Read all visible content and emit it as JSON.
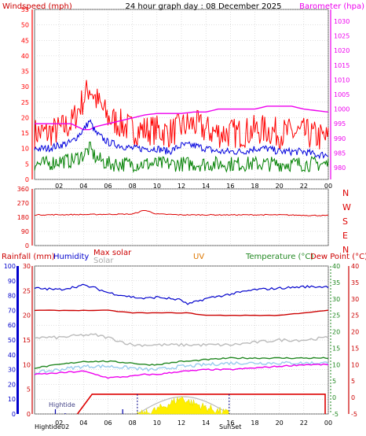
{
  "colors": {
    "wind": "#ff0000",
    "gust": "#ff0000",
    "wind_avg": "#0000dd",
    "wind_low": "#008000",
    "barometer": "#ee00ee",
    "direction": "#dd0000",
    "humidity": "#0000cc",
    "rainfall": "#0000cc",
    "max_solar": "#bbbbbb",
    "solar": "#bbbbbb",
    "uv": "#dd7700",
    "temperature": "#228822",
    "dew_point": "#cc0000",
    "sun": "#ffee00",
    "grid": "#c0c0c0"
  },
  "header": {
    "left_title": "Windspeed (mph)",
    "center_title": "24 hour graph day : 08 December 2025",
    "right_title": "Barometer (hpa)"
  },
  "chart_data": [
    {
      "type": "line",
      "title": "24 hour graph day : 08 December 2025",
      "x_ticks": [
        "02",
        "04",
        "06",
        "08",
        "10",
        "12",
        "14",
        "16",
        "18",
        "20",
        "22",
        "00"
      ],
      "ylabel": "Windspeed (mph)",
      "ylim": [
        0,
        55
      ],
      "y_ticks": [
        "0",
        "5",
        "10",
        "15",
        "20",
        "25",
        "30",
        "35",
        "40",
        "45",
        "50",
        "55"
      ],
      "y2label": "Barometer (hpa)",
      "y2lim": [
        976,
        1034
      ],
      "y2_ticks": [
        "980",
        "985",
        "990",
        "995",
        "1000",
        "1005",
        "1010",
        "1015",
        "1020",
        "1025",
        "1030"
      ],
      "hours": [
        0,
        1,
        2,
        3,
        4,
        4.5,
        5,
        6,
        7,
        8,
        9,
        10,
        11,
        12,
        13,
        14,
        15,
        16,
        17,
        18,
        19,
        20,
        21,
        22,
        23,
        24
      ],
      "series": [
        {
          "key": "gust",
          "values": [
            15,
            15,
            16,
            18,
            26,
            30,
            26,
            20,
            18,
            16,
            16,
            16,
            15,
            17,
            18,
            16,
            15,
            15,
            15,
            16,
            16,
            15,
            15,
            15,
            14,
            13
          ]
        },
        {
          "key": "wind_avg",
          "values": [
            10,
            10,
            11,
            12,
            16,
            19,
            15,
            12,
            11,
            10,
            10,
            10,
            9,
            11,
            11,
            10,
            9,
            9,
            9,
            10,
            10,
            9,
            9,
            9,
            8,
            8
          ]
        },
        {
          "key": "wind_low",
          "values": [
            5,
            5,
            6,
            6,
            8,
            10,
            7,
            5,
            5,
            5,
            5,
            5,
            5,
            5,
            5,
            5,
            5,
            5,
            5,
            5,
            5,
            5,
            5,
            5,
            5,
            5
          ]
        },
        {
          "key": "barometer",
          "values": [
            995,
            995,
            995,
            995,
            993,
            993,
            994,
            995,
            996,
            997,
            998,
            998.5,
            998.5,
            998.5,
            999,
            999,
            1000,
            1000,
            1000,
            1000,
            1001,
            1001,
            1001,
            1000,
            999.5,
            999
          ]
        }
      ]
    },
    {
      "type": "line",
      "ylim": [
        0,
        360
      ],
      "y_ticks": [
        "0",
        "90",
        "180",
        "270",
        "360"
      ],
      "direction_labels": [
        "N",
        "W",
        "S",
        "E",
        "N"
      ],
      "hours": [
        0,
        4,
        8,
        9,
        10,
        12,
        16,
        20,
        24
      ],
      "series": [
        {
          "key": "direction",
          "values": [
            195,
            197,
            200,
            225,
            200,
            195,
            195,
            195,
            190
          ]
        }
      ]
    },
    {
      "type": "line",
      "legend": {
        "rainfall": "Rainfall (mm)",
        "humidity": "Humidity",
        "max_solar": "Max solar",
        "solar": "Solar",
        "uv": "UV",
        "temperature": "Temperature (°C)",
        "dew_point": "Dew Point (°C)"
      },
      "y_left_outer": {
        "label": "Humidity",
        "ylim": [
          0,
          100
        ],
        "ticks": [
          "0",
          "10",
          "20",
          "30",
          "40",
          "50",
          "60",
          "70",
          "80",
          "90",
          "100"
        ]
      },
      "y_left_inner": {
        "label": "Rainfall (mm)",
        "ylim": [
          0,
          30
        ],
        "ticks": [
          "0",
          "5",
          "10",
          "15",
          "20",
          "25",
          "30"
        ]
      },
      "y_right_inner": {
        "label": "Temperature (°C)",
        "ylim": [
          -5,
          40
        ],
        "ticks": [
          "-5",
          "0",
          "5",
          "10",
          "15",
          "20",
          "25",
          "30",
          "35",
          "40"
        ]
      },
      "y_right_outer": {
        "label": "Dew Point (°C)",
        "ylim": [
          -5,
          40
        ],
        "ticks": [
          "-5",
          "0",
          "5",
          "10",
          "15",
          "20",
          "25",
          "30",
          "35",
          "40"
        ]
      },
      "hours": [
        0,
        2,
        4,
        5,
        6,
        8,
        9,
        10,
        12,
        12.5,
        14,
        16,
        18,
        20,
        22,
        24
      ],
      "series": [
        {
          "key": "humidity",
          "values": [
            85,
            84,
            87,
            85,
            82,
            79,
            78,
            79,
            77,
            74,
            78,
            81,
            84,
            85,
            86,
            86
          ]
        },
        {
          "key": "rainfall",
          "values": [
            21,
            21,
            21,
            21,
            21,
            20.5,
            20.5,
            20.5,
            20.5,
            20.5,
            20,
            20,
            20,
            20,
            20.5,
            21
          ]
        },
        {
          "key": "solar",
          "values": [
            15.5,
            15.5,
            16,
            16,
            15.5,
            14,
            14,
            14,
            14,
            14,
            14,
            14,
            14.5,
            15,
            15,
            15.5
          ]
        },
        {
          "key": "temperature",
          "values": [
            9,
            10,
            11,
            11,
            11,
            10.5,
            10,
            10,
            11,
            11,
            11.5,
            12,
            12,
            12,
            12,
            12
          ]
        },
        {
          "key": "dew_point",
          "values": [
            7,
            7.5,
            8,
            7,
            6,
            6.5,
            7,
            7,
            8,
            8,
            8.5,
            8.5,
            9,
            9.5,
            10,
            10
          ]
        },
        {
          "key": "uv",
          "values": [
            0,
            0,
            0,
            0,
            0,
            0,
            0,
            0.4,
            1.5,
            1.2,
            0.6,
            0,
            0,
            0,
            0,
            0
          ]
        }
      ],
      "sun_markers": {
        "sunrise_hour": 8.4,
        "sunset_hour": 15.9,
        "tide_label": "Hightide",
        "tide_value": "02",
        "surf_set_label": "SunSet"
      }
    }
  ]
}
